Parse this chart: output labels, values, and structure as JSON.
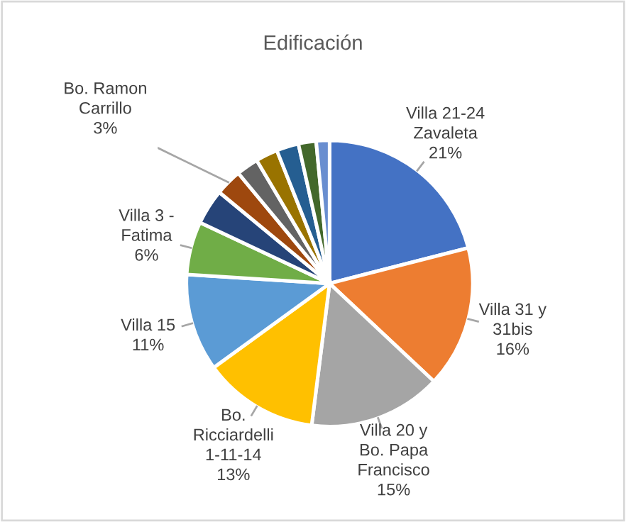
{
  "chart_data": {
    "type": "pie",
    "title": "Edificación",
    "categories": [
      "Villa 21-24\nZavaleta",
      "Villa 31 y\n31bis",
      "Villa 20 y\nBo. Papa\nFrancisco",
      "Bo.\nRicciardelli\n1-11-14",
      "Villa 15",
      "Villa 3 -\nFatima",
      null,
      "Bo. Ramon\nCarrillo",
      null,
      null,
      null,
      null,
      null
    ],
    "values": [
      21,
      16,
      15,
      13,
      11,
      6,
      4,
      3,
      2.5,
      2.5,
      2.5,
      2,
      1.5
    ],
    "value_labels": [
      "21%",
      "16%",
      "15%",
      "13%",
      "11%",
      "6%",
      null,
      "3%",
      null,
      null,
      null,
      null,
      null
    ],
    "colors": [
      "#4472c4",
      "#ed7d31",
      "#a5a5a5",
      "#ffc000",
      "#5b9bd5",
      "#70ad47",
      "#264478",
      "#9e480e",
      "#636363",
      "#997300",
      "#255e91",
      "#43682b",
      "#698ed0"
    ],
    "legend": false
  }
}
